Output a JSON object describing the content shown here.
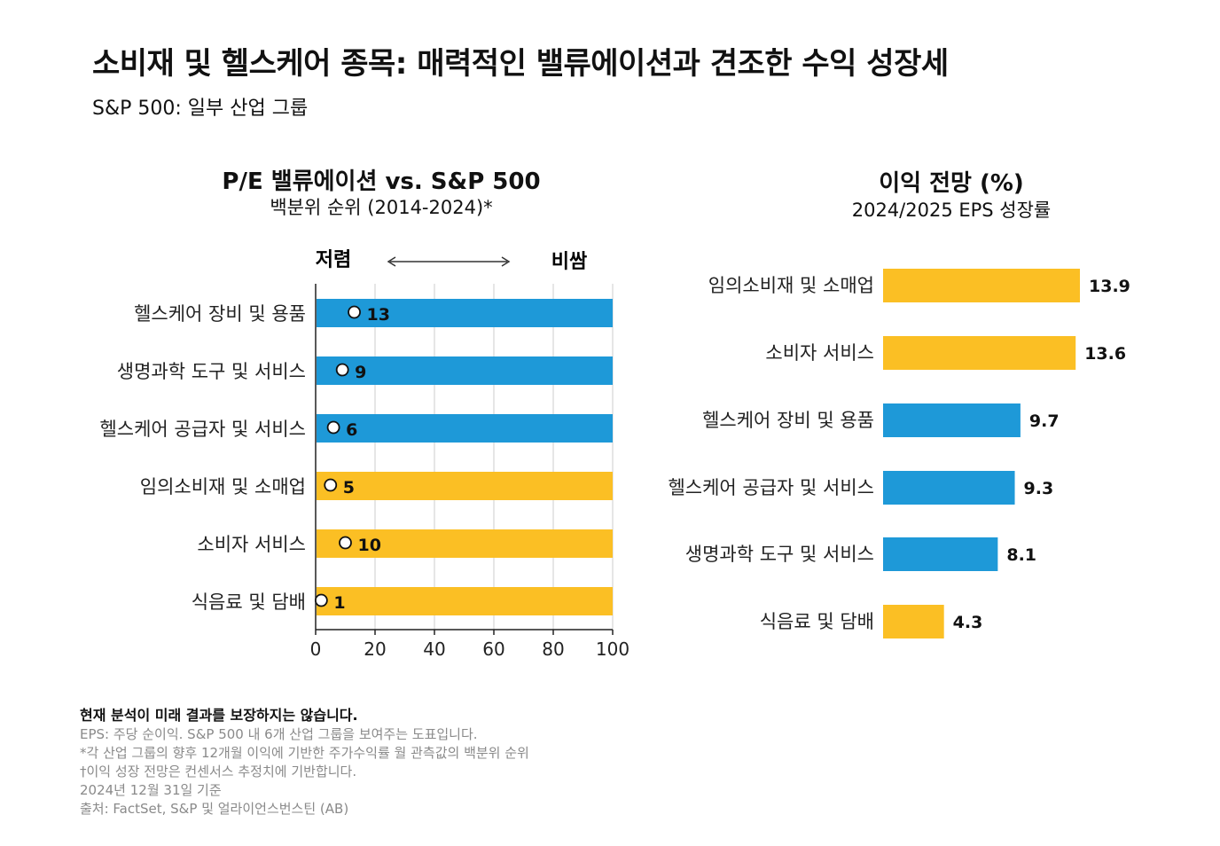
{
  "title": "소비재 및 헬스케어 종목: 매력적인 밸류에이션과 견조한 수익 성장세",
  "subtitle": "S&P 500: 일부 산업 그룹",
  "colors": {
    "consumer": "#fbbf24",
    "health": "#1e99d8",
    "grid": "#dddddd"
  },
  "footnotes": {
    "bold": "현재 분석이 미래 결과를 보장하지는 않습니다.",
    "lines": [
      "EPS: 주당 순이익. S&P 500 내 6개 산업 그룹을 보여주는 도표입니다.",
      "*각 산업 그룹의 향후 12개월 이익에 기반한 주가수익률 월 관측값의 백분위 순위",
      "†이익 성장 전망은 컨센서스 추정치에 기반합니다.",
      "2024년 12월 31일 기준",
      "출처: FactSet, S&P 및 얼라이언스번스틴 (AB)"
    ]
  },
  "chart_data": [
    {
      "type": "bar",
      "orientation": "horizontal",
      "title": "P/E 밸류에이션 vs. S&P 500",
      "subtitle": "백분위 순위 (2014-2024)*",
      "scale_left": "저렴",
      "scale_right": "비쌈",
      "xlim": [
        0,
        100
      ],
      "xticks": [
        0,
        20,
        40,
        60,
        80,
        100
      ],
      "grid": true,
      "categories": [
        "헬스케어 장비 및 용품",
        "생명과학 도구 및 서비스",
        "헬스케어 공급자 및 서비스",
        "임의소비재 및 소매업",
        "소비자 서비스",
        "식음료 및 담배"
      ],
      "values": [
        13,
        9,
        6,
        5,
        10,
        1
      ],
      "bar_extent": [
        100,
        100,
        100,
        100,
        100,
        100
      ],
      "groups": [
        "health",
        "health",
        "health",
        "consumer",
        "consumer",
        "consumer"
      ]
    },
    {
      "type": "bar",
      "orientation": "horizontal",
      "title": "이익 전망 (%)",
      "subtitle": "2024/2025 EPS 성장률",
      "categories": [
        "임의소비재 및 소매업",
        "소비자 서비스",
        "헬스케어 장비 및 용품",
        "헬스케어 공급자 및 서비스",
        "생명과학 도구 및 서비스",
        "식음료 및 담배"
      ],
      "values": [
        13.9,
        13.6,
        9.7,
        9.3,
        8.1,
        4.3
      ],
      "groups": [
        "consumer",
        "consumer",
        "health",
        "health",
        "health",
        "consumer"
      ]
    }
  ]
}
